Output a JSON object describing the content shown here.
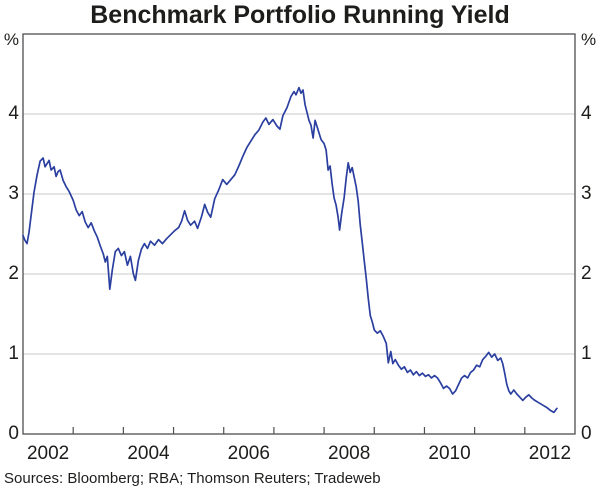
{
  "colors": {
    "background": "#ffffff",
    "frame": "#4f4f51",
    "grid": "#c9c9c9",
    "text": "#1d1d1b",
    "line": "#2b3fa0"
  },
  "chart_data": {
    "type": "line",
    "title": "Benchmark Portfolio Running Yield",
    "y_unit_left": "%",
    "y_unit_right": "%",
    "source_note": "Sources: Bloomberg; RBA; Thomson Reuters; Tradeweb",
    "x_axis": {
      "range": [
        2002,
        2013
      ],
      "tick_years": [
        2003,
        2004,
        2005,
        2006,
        2007,
        2008,
        2009,
        2010,
        2011,
        2012
      ],
      "label_years": [
        2002,
        2004,
        2006,
        2008,
        2010,
        2012
      ],
      "labels_centered_mid_year": true
    },
    "y_axis": {
      "range": [
        0,
        5
      ],
      "tick_labels": [
        "4",
        "3",
        "2",
        "1",
        "0"
      ],
      "tick_values": [
        4,
        3,
        2,
        1,
        0
      ],
      "gridline_values": [
        1,
        2,
        3,
        4
      ],
      "grid": true
    },
    "legend": {
      "shown": false
    },
    "series": [
      {
        "name": "Benchmark Portfolio Running Yield",
        "color": "#2b3fa0",
        "points": [
          [
            2002.0,
            2.48
          ],
          [
            2002.04,
            2.42
          ],
          [
            2002.08,
            2.38
          ],
          [
            2002.12,
            2.52
          ],
          [
            2002.16,
            2.72
          ],
          [
            2002.22,
            3.02
          ],
          [
            2002.28,
            3.24
          ],
          [
            2002.34,
            3.41
          ],
          [
            2002.4,
            3.45
          ],
          [
            2002.44,
            3.34
          ],
          [
            2002.48,
            3.38
          ],
          [
            2002.52,
            3.42
          ],
          [
            2002.56,
            3.3
          ],
          [
            2002.62,
            3.34
          ],
          [
            2002.66,
            3.22
          ],
          [
            2002.7,
            3.28
          ],
          [
            2002.74,
            3.3
          ],
          [
            2002.8,
            3.17
          ],
          [
            2002.86,
            3.09
          ],
          [
            2002.92,
            3.03
          ],
          [
            2003.0,
            2.92
          ],
          [
            2003.06,
            2.8
          ],
          [
            2003.12,
            2.73
          ],
          [
            2003.18,
            2.78
          ],
          [
            2003.24,
            2.65
          ],
          [
            2003.3,
            2.58
          ],
          [
            2003.36,
            2.64
          ],
          [
            2003.42,
            2.54
          ],
          [
            2003.48,
            2.46
          ],
          [
            2003.54,
            2.35
          ],
          [
            2003.6,
            2.25
          ],
          [
            2003.64,
            2.15
          ],
          [
            2003.68,
            2.22
          ],
          [
            2003.73,
            1.81
          ],
          [
            2003.78,
            2.05
          ],
          [
            2003.84,
            2.28
          ],
          [
            2003.9,
            2.32
          ],
          [
            2003.96,
            2.23
          ],
          [
            2004.02,
            2.28
          ],
          [
            2004.08,
            2.11
          ],
          [
            2004.14,
            2.22
          ],
          [
            2004.2,
            2.0
          ],
          [
            2004.24,
            1.92
          ],
          [
            2004.3,
            2.17
          ],
          [
            2004.36,
            2.31
          ],
          [
            2004.42,
            2.38
          ],
          [
            2004.48,
            2.32
          ],
          [
            2004.54,
            2.41
          ],
          [
            2004.62,
            2.36
          ],
          [
            2004.7,
            2.43
          ],
          [
            2004.78,
            2.38
          ],
          [
            2004.86,
            2.44
          ],
          [
            2004.94,
            2.49
          ],
          [
            2005.02,
            2.54
          ],
          [
            2005.1,
            2.58
          ],
          [
            2005.16,
            2.66
          ],
          [
            2005.22,
            2.79
          ],
          [
            2005.28,
            2.67
          ],
          [
            2005.34,
            2.61
          ],
          [
            2005.42,
            2.66
          ],
          [
            2005.48,
            2.57
          ],
          [
            2005.56,
            2.72
          ],
          [
            2005.62,
            2.87
          ],
          [
            2005.68,
            2.77
          ],
          [
            2005.74,
            2.71
          ],
          [
            2005.82,
            2.94
          ],
          [
            2005.9,
            3.05
          ],
          [
            2005.98,
            3.18
          ],
          [
            2006.06,
            3.12
          ],
          [
            2006.14,
            3.18
          ],
          [
            2006.22,
            3.24
          ],
          [
            2006.3,
            3.35
          ],
          [
            2006.38,
            3.47
          ],
          [
            2006.46,
            3.58
          ],
          [
            2006.54,
            3.66
          ],
          [
            2006.62,
            3.74
          ],
          [
            2006.7,
            3.8
          ],
          [
            2006.78,
            3.9
          ],
          [
            2006.84,
            3.95
          ],
          [
            2006.9,
            3.87
          ],
          [
            2006.98,
            3.93
          ],
          [
            2007.06,
            3.85
          ],
          [
            2007.12,
            3.81
          ],
          [
            2007.18,
            3.98
          ],
          [
            2007.26,
            4.08
          ],
          [
            2007.34,
            4.22
          ],
          [
            2007.4,
            4.28
          ],
          [
            2007.44,
            4.24
          ],
          [
            2007.5,
            4.33
          ],
          [
            2007.54,
            4.26
          ],
          [
            2007.58,
            4.3
          ],
          [
            2007.62,
            4.12
          ],
          [
            2007.66,
            4.02
          ],
          [
            2007.7,
            3.92
          ],
          [
            2007.74,
            3.86
          ],
          [
            2007.78,
            3.7
          ],
          [
            2007.82,
            3.92
          ],
          [
            2007.88,
            3.8
          ],
          [
            2007.94,
            3.68
          ],
          [
            2008.0,
            3.63
          ],
          [
            2008.04,
            3.55
          ],
          [
            2008.08,
            3.3
          ],
          [
            2008.12,
            3.35
          ],
          [
            2008.16,
            3.13
          ],
          [
            2008.2,
            2.95
          ],
          [
            2008.24,
            2.86
          ],
          [
            2008.28,
            2.71
          ],
          [
            2008.31,
            2.55
          ],
          [
            2008.35,
            2.76
          ],
          [
            2008.4,
            2.96
          ],
          [
            2008.44,
            3.2
          ],
          [
            2008.48,
            3.39
          ],
          [
            2008.52,
            3.27
          ],
          [
            2008.56,
            3.33
          ],
          [
            2008.6,
            3.21
          ],
          [
            2008.64,
            3.09
          ],
          [
            2008.68,
            2.91
          ],
          [
            2008.72,
            2.62
          ],
          [
            2008.76,
            2.4
          ],
          [
            2008.8,
            2.17
          ],
          [
            2008.84,
            1.95
          ],
          [
            2008.88,
            1.69
          ],
          [
            2008.92,
            1.48
          ],
          [
            2008.96,
            1.4
          ],
          [
            2009.0,
            1.3
          ],
          [
            2009.06,
            1.26
          ],
          [
            2009.12,
            1.29
          ],
          [
            2009.18,
            1.22
          ],
          [
            2009.24,
            1.13
          ],
          [
            2009.28,
            0.89
          ],
          [
            2009.33,
            1.03
          ],
          [
            2009.37,
            0.88
          ],
          [
            2009.42,
            0.93
          ],
          [
            2009.48,
            0.86
          ],
          [
            2009.54,
            0.81
          ],
          [
            2009.6,
            0.84
          ],
          [
            2009.66,
            0.77
          ],
          [
            2009.72,
            0.8
          ],
          [
            2009.78,
            0.74
          ],
          [
            2009.84,
            0.78
          ],
          [
            2009.9,
            0.73
          ],
          [
            2009.96,
            0.76
          ],
          [
            2010.02,
            0.72
          ],
          [
            2010.08,
            0.74
          ],
          [
            2010.14,
            0.7
          ],
          [
            2010.2,
            0.73
          ],
          [
            2010.26,
            0.7
          ],
          [
            2010.32,
            0.64
          ],
          [
            2010.38,
            0.57
          ],
          [
            2010.44,
            0.6
          ],
          [
            2010.5,
            0.57
          ],
          [
            2010.56,
            0.5
          ],
          [
            2010.62,
            0.54
          ],
          [
            2010.68,
            0.62
          ],
          [
            2010.74,
            0.7
          ],
          [
            2010.8,
            0.73
          ],
          [
            2010.86,
            0.7
          ],
          [
            2010.92,
            0.77
          ],
          [
            2010.98,
            0.8
          ],
          [
            2011.04,
            0.86
          ],
          [
            2011.1,
            0.84
          ],
          [
            2011.16,
            0.93
          ],
          [
            2011.22,
            0.97
          ],
          [
            2011.28,
            1.02
          ],
          [
            2011.34,
            0.96
          ],
          [
            2011.4,
            1.0
          ],
          [
            2011.46,
            0.92
          ],
          [
            2011.52,
            0.95
          ],
          [
            2011.56,
            0.88
          ],
          [
            2011.6,
            0.76
          ],
          [
            2011.64,
            0.62
          ],
          [
            2011.68,
            0.54
          ],
          [
            2011.72,
            0.5
          ],
          [
            2011.78,
            0.55
          ],
          [
            2011.84,
            0.5
          ],
          [
            2011.9,
            0.46
          ],
          [
            2011.96,
            0.42
          ],
          [
            2012.02,
            0.46
          ],
          [
            2012.08,
            0.49
          ],
          [
            2012.14,
            0.45
          ],
          [
            2012.2,
            0.42
          ],
          [
            2012.28,
            0.39
          ],
          [
            2012.36,
            0.36
          ],
          [
            2012.44,
            0.33
          ],
          [
            2012.52,
            0.29
          ],
          [
            2012.58,
            0.27
          ],
          [
            2012.64,
            0.32
          ]
        ]
      }
    ]
  }
}
